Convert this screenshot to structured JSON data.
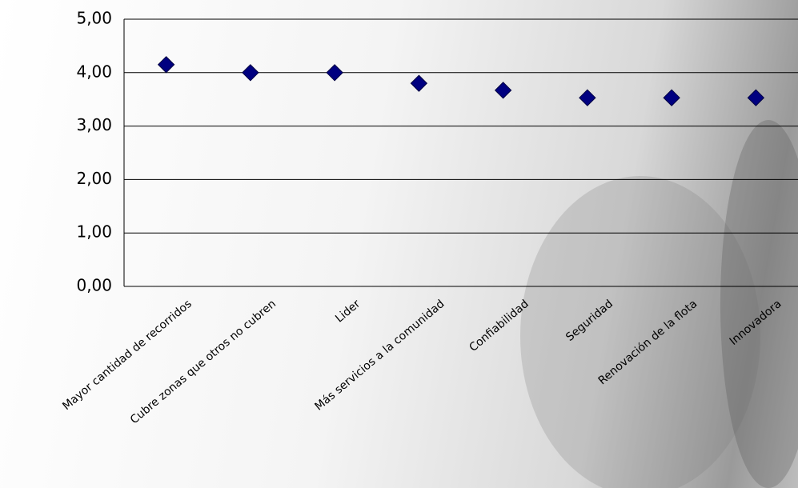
{
  "chart_data": {
    "type": "scatter",
    "categories": [
      "Mayor cantidad de recorridos",
      "Cubre zonas que otros no cubren",
      "Lider",
      "Más servicios a la comunidad",
      "Confiabilidad",
      "Seguridad",
      "Renovación de la flota",
      "Innovadora"
    ],
    "values": [
      4.15,
      4.0,
      4.0,
      3.8,
      3.67,
      3.53,
      3.53,
      3.53
    ],
    "color": "#000080",
    "ylim": [
      0,
      5
    ],
    "yticks": [
      {
        "value": 0,
        "label": "0,00"
      },
      {
        "value": 1,
        "label": "1,00"
      },
      {
        "value": 2,
        "label": "2,00"
      },
      {
        "value": 3,
        "label": "3,00"
      },
      {
        "value": 4,
        "label": "4,00"
      },
      {
        "value": 5,
        "label": "5,00"
      }
    ],
    "grid": true
  }
}
